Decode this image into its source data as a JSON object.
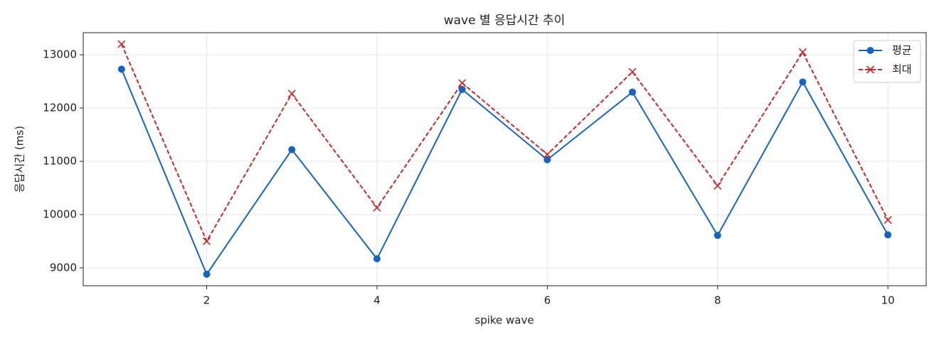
{
  "chart_data": {
    "type": "line",
    "title": "wave 별 응답시간 추이",
    "xlabel": "spike wave",
    "ylabel": "응답시간 (ms)",
    "x": [
      1,
      2,
      3,
      4,
      5,
      6,
      7,
      8,
      9,
      10
    ],
    "series": [
      {
        "name": "평균",
        "color": "#1565c0",
        "marker": "o",
        "linestyle": "solid",
        "values": [
          12730,
          8880,
          11220,
          9170,
          12350,
          11030,
          12300,
          9610,
          12490,
          9620
        ]
      },
      {
        "name": "최대",
        "color": "#c62828",
        "marker": "x",
        "linestyle": "dashed",
        "values": [
          13200,
          9500,
          12270,
          10130,
          12470,
          11130,
          12680,
          10540,
          13050,
          9900
        ]
      }
    ],
    "xlim": [
      0.55,
      10.45
    ],
    "xticks": [
      2,
      4,
      6,
      8,
      10
    ],
    "ylim": [
      8665,
      13415
    ],
    "yticks": [
      9000,
      10000,
      11000,
      12000,
      13000
    ],
    "grid": true,
    "legend": "upper right"
  }
}
